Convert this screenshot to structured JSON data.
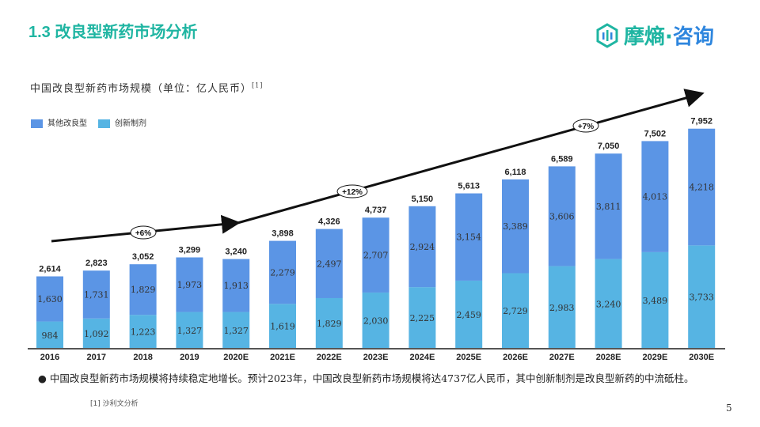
{
  "header": {
    "title": "1.3 改良型新药市场分析",
    "logo_text_a": "摩熵·",
    "logo_text_b": "咨询"
  },
  "chart_data": {
    "type": "bar",
    "stacked": true,
    "title": "中国改良型新药市场规模（单位：亿人民币）",
    "title_ref": "[1]",
    "categories": [
      "2016",
      "2017",
      "2018",
      "2019",
      "2020E",
      "2021E",
      "2022E",
      "2023E",
      "2024E",
      "2025E",
      "2026E",
      "2027E",
      "2028E",
      "2029E",
      "2030E"
    ],
    "series": [
      {
        "name": "创新制剂",
        "color": "#56b4e3",
        "values": [
          984,
          1092,
          1223,
          1327,
          1327,
          1619,
          1829,
          2030,
          2225,
          2459,
          2729,
          2983,
          3240,
          3489,
          3733
        ]
      },
      {
        "name": "其他改良型",
        "color": "#5b95e5",
        "values": [
          1630,
          1731,
          1829,
          1973,
          1913,
          2279,
          2497,
          2707,
          2924,
          3154,
          3389,
          3606,
          3811,
          4013,
          4218
        ]
      }
    ],
    "totals": [
      "2,614",
      "2,823",
      "3,052",
      "3,299",
      "3,240",
      "3,898",
      "4,326",
      "4,737",
      "5,150",
      "5,613",
      "6,118",
      "6,589",
      "7,050",
      "7,502",
      "7,952"
    ],
    "legend_order": [
      "其他改良型",
      "创新制剂"
    ],
    "legend_position": "top-left",
    "grid": false,
    "ylim": [
      0,
      8500
    ],
    "annotations": [
      {
        "label": "+6%",
        "from": "2016",
        "to": "2020E"
      },
      {
        "label": "+12%",
        "from": "2020E",
        "to": "2030E"
      },
      {
        "label": "+7%",
        "from": "2020E",
        "to": "2030E"
      }
    ]
  },
  "footer": {
    "note": "中国改良型新药市场规模将持续稳定地增长。预计2023年，中国改良型新药市场规模将达4737亿人民币，其中创新制剂是改良型新药的中流砥柱。",
    "source": "[1] 沙利文分析",
    "page": "5"
  }
}
